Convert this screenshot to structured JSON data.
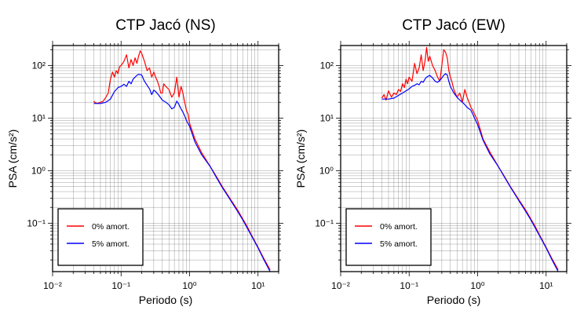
{
  "chart_data": [
    {
      "type": "line",
      "title": "CTP Jacó (NS)",
      "xlabel": "Periodo (s)",
      "ylabel": "PSA (cm/s²)",
      "xscale": "log",
      "yscale": "log",
      "xlim": [
        0.01,
        20
      ],
      "ylim": [
        0.012,
        240
      ],
      "grid": true,
      "legend_position": "bottom-left",
      "x_ticks": [
        "10⁻²",
        "10⁻¹",
        "10⁰",
        "10¹"
      ],
      "y_ticks": [
        "10⁻¹",
        "10⁰",
        "10¹",
        "10²"
      ],
      "series": [
        {
          "name": "0% amort.",
          "color": "#ff0000",
          "x": [
            0.04,
            0.042,
            0.045,
            0.05,
            0.055,
            0.06,
            0.065,
            0.07,
            0.075,
            0.08,
            0.085,
            0.09,
            0.095,
            0.1,
            0.11,
            0.12,
            0.13,
            0.14,
            0.15,
            0.16,
            0.17,
            0.18,
            0.19,
            0.2,
            0.22,
            0.24,
            0.26,
            0.28,
            0.3,
            0.32,
            0.34,
            0.36,
            0.38,
            0.4,
            0.42,
            0.45,
            0.5,
            0.55,
            0.6,
            0.65,
            0.7,
            0.75,
            0.8,
            0.85,
            0.9,
            0.95,
            1.0,
            1.2,
            1.5,
            2,
            2.5,
            3,
            4,
            5,
            6,
            7,
            8,
            10,
            12,
            15
          ],
          "y": [
            21,
            19.5,
            19,
            20,
            21,
            25,
            30,
            55,
            75,
            60,
            80,
            70,
            95,
            100,
            120,
            160,
            90,
            130,
            100,
            140,
            110,
            150,
            190,
            170,
            120,
            80,
            90,
            60,
            75,
            60,
            50,
            40,
            30,
            30,
            45,
            40,
            35,
            25,
            30,
            60,
            25,
            40,
            30,
            20,
            14,
            12,
            8,
            4,
            2.2,
            1.2,
            0.75,
            0.5,
            0.28,
            0.18,
            0.12,
            0.085,
            0.06,
            0.035,
            0.022,
            0.013
          ]
        },
        {
          "name": "5% amort.",
          "color": "#0000ff",
          "x": [
            0.04,
            0.05,
            0.06,
            0.07,
            0.08,
            0.09,
            0.1,
            0.11,
            0.12,
            0.13,
            0.14,
            0.15,
            0.16,
            0.17,
            0.18,
            0.2,
            0.22,
            0.24,
            0.26,
            0.28,
            0.3,
            0.32,
            0.35,
            0.4,
            0.45,
            0.5,
            0.55,
            0.6,
            0.65,
            0.7,
            0.75,
            0.8,
            0.85,
            0.9,
            1.0,
            1.2,
            1.5,
            2,
            2.5,
            3,
            4,
            5,
            6,
            7,
            8,
            10,
            12,
            15
          ],
          "y": [
            19,
            19,
            20,
            23,
            32,
            38,
            40,
            44,
            40,
            50,
            45,
            55,
            60,
            65,
            68,
            66,
            50,
            42,
            36,
            28,
            34,
            32,
            28,
            22,
            20,
            18,
            15,
            16,
            21,
            18,
            15,
            13,
            11,
            9,
            7,
            3.5,
            2,
            1.2,
            0.72,
            0.48,
            0.27,
            0.17,
            0.115,
            0.08,
            0.058,
            0.034,
            0.021,
            0.012
          ]
        }
      ]
    },
    {
      "type": "line",
      "title": "CTP Jacó (EW)",
      "xlabel": "Periodo (s)",
      "ylabel": "PSA (cm/s²)",
      "xscale": "log",
      "yscale": "log",
      "xlim": [
        0.01,
        20
      ],
      "ylim": [
        0.012,
        240
      ],
      "grid": true,
      "legend_position": "bottom-left",
      "x_ticks": [
        "10⁻²",
        "10⁻¹",
        "10⁰",
        "10¹"
      ],
      "y_ticks": [
        "10⁻¹",
        "10⁰",
        "10¹",
        "10²"
      ],
      "series": [
        {
          "name": "0% amort.",
          "color": "#ff0000",
          "x": [
            0.04,
            0.043,
            0.046,
            0.05,
            0.055,
            0.06,
            0.065,
            0.07,
            0.075,
            0.08,
            0.085,
            0.09,
            0.095,
            0.1,
            0.11,
            0.12,
            0.13,
            0.14,
            0.15,
            0.16,
            0.17,
            0.18,
            0.19,
            0.2,
            0.22,
            0.24,
            0.26,
            0.28,
            0.3,
            0.32,
            0.34,
            0.36,
            0.38,
            0.4,
            0.42,
            0.45,
            0.5,
            0.55,
            0.6,
            0.65,
            0.7,
            0.75,
            0.8,
            0.85,
            0.9,
            1.0,
            1.2,
            1.5,
            2,
            2.5,
            3,
            4,
            5,
            6,
            7,
            8,
            10,
            12,
            15
          ],
          "y": [
            24,
            28,
            22,
            33,
            25,
            30,
            28,
            35,
            32,
            45,
            38,
            55,
            45,
            60,
            50,
            110,
            70,
            90,
            160,
            80,
            120,
            220,
            120,
            150,
            100,
            80,
            60,
            50,
            100,
            200,
            180,
            140,
            80,
            60,
            50,
            35,
            25,
            30,
            20,
            35,
            25,
            20,
            16,
            14,
            12,
            9,
            4,
            2.3,
            1.2,
            0.75,
            0.5,
            0.28,
            0.18,
            0.12,
            0.085,
            0.06,
            0.035,
            0.022,
            0.013
          ]
        },
        {
          "name": "5% amort.",
          "color": "#0000ff",
          "x": [
            0.04,
            0.05,
            0.06,
            0.07,
            0.08,
            0.09,
            0.1,
            0.11,
            0.12,
            0.13,
            0.14,
            0.15,
            0.16,
            0.17,
            0.18,
            0.2,
            0.22,
            0.24,
            0.26,
            0.28,
            0.3,
            0.32,
            0.34,
            0.36,
            0.38,
            0.4,
            0.45,
            0.5,
            0.55,
            0.6,
            0.65,
            0.7,
            0.75,
            0.8,
            0.85,
            0.9,
            1.0,
            1.2,
            1.5,
            2,
            2.5,
            3,
            4,
            5,
            6,
            7,
            8,
            10,
            12,
            15
          ],
          "y": [
            23,
            23,
            24,
            27,
            30,
            33,
            36,
            40,
            42,
            45,
            43,
            50,
            48,
            55,
            60,
            65,
            58,
            50,
            48,
            52,
            58,
            65,
            70,
            66,
            50,
            40,
            30,
            25,
            22,
            20,
            18,
            16,
            15,
            14,
            12,
            10,
            7.5,
            3.8,
            2.1,
            1.2,
            0.73,
            0.49,
            0.27,
            0.17,
            0.115,
            0.08,
            0.058,
            0.034,
            0.021,
            0.012
          ]
        }
      ]
    }
  ]
}
